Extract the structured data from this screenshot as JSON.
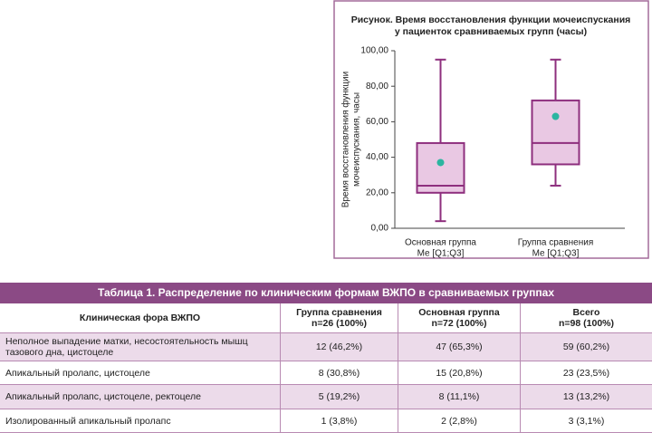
{
  "chart_data": {
    "type": "box",
    "title": [
      "Рисунок. Время восстановления функции мочеиспускания",
      "у пациенток сравниваемых групп (часы)"
    ],
    "ylabel": [
      "Время восстановления функции",
      "мочеиспускания, часы"
    ],
    "categories": [
      "Основная группа",
      "Группа сравнения"
    ],
    "category_notes": [
      "Me [Q1;Q3]",
      "Me [Q1;Q3]"
    ],
    "boxes": [
      {
        "min": 4,
        "q1": 20,
        "median": 24,
        "q3": 48,
        "max": 95,
        "mean": 37
      },
      {
        "min": 24,
        "q1": 36,
        "median": 48,
        "q3": 72,
        "max": 95,
        "mean": 63
      }
    ],
    "box_fill": "#e9c8e3",
    "box_stroke": "#8e2f7e",
    "mean_color": "#2bb5a0",
    "ylim": [
      0,
      100
    ],
    "yticks": [
      {
        "value": 0,
        "label": "0,00"
      },
      {
        "value": 20,
        "label": "20,00"
      },
      {
        "value": 40,
        "label": "40,00"
      },
      {
        "value": 60,
        "label": "60,00"
      },
      {
        "value": 80,
        "label": "80,00"
      },
      {
        "value": 100,
        "label": "100,00"
      }
    ]
  },
  "table": {
    "title": "Таблица 1. Распределение по клиническим формам ВЖПО в сравниваемых группах",
    "header": [
      [
        "Клиническая фора ВЖПО"
      ],
      [
        "Группа сравнения",
        "n=26 (100%)"
      ],
      [
        "Основная группа",
        "n=72 (100%)"
      ],
      [
        "Всего",
        "n=98 (100%)"
      ]
    ],
    "rows": [
      [
        "Неполное выпадение матки, несостоятельность мышц тазового дна, цистоцеле",
        "12 (46,2%)",
        "47 (65,3%)",
        "59 (60,2%)"
      ],
      [
        "Апикальный пролапс, цистоцеле",
        "8 (30,8%)",
        "15 (20,8%)",
        "23 (23,5%)"
      ],
      [
        "Апикальный пролапс, цистоцеле, ректоцеле",
        "5 (19,2%)",
        "8 (11,1%)",
        "13 (13,2%)"
      ],
      [
        "Изолированный апикальный пролапс",
        "1 (3,8%)",
        "2 (2,8%)",
        "3 (3,1%)"
      ]
    ]
  }
}
